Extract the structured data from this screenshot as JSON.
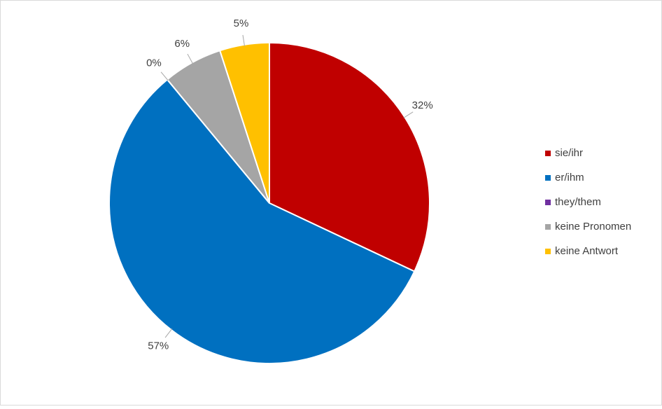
{
  "chart_data": {
    "type": "pie",
    "categories": [
      "sie/ihr",
      "er/ihm",
      "they/them",
      "keine Pronomen",
      "keine Antwort"
    ],
    "values": [
      32,
      57,
      0,
      6,
      5
    ],
    "value_labels": [
      "32%",
      "57%",
      "0%",
      "6%",
      "5%"
    ],
    "colors": [
      "#c00000",
      "#0070c0",
      "#7030a0",
      "#a5a5a5",
      "#ffc000"
    ],
    "legend": "right"
  }
}
